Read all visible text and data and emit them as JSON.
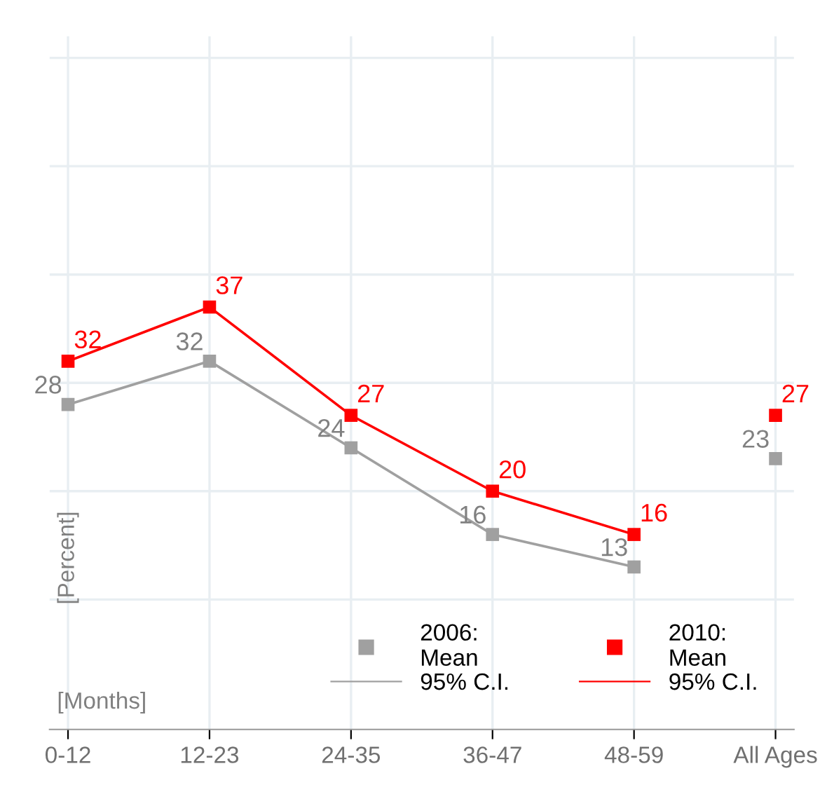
{
  "chart_data": {
    "type": "line",
    "xlabel": "[Months]",
    "ylabel": "[Percent]",
    "categories": [
      "0-12",
      "12-23",
      "24-35",
      "36-47",
      "48-59",
      "All Ages"
    ],
    "series": [
      {
        "name": "2006:\nMean",
        "color": "#a0a0a0",
        "values": [
          28,
          32,
          24,
          16,
          13,
          null
        ]
      },
      {
        "type": "scatter",
        "color": "#a0a0a0",
        "values": [
          null,
          null,
          null,
          null,
          null,
          23
        ]
      },
      {
        "name": "2010:\nMean",
        "color": "#ff0000",
        "values": [
          32,
          37,
          27,
          20,
          16,
          null
        ]
      },
      {
        "type": "scatter",
        "color": "#ff0000",
        "values": [
          null,
          null,
          null,
          null,
          null,
          27
        ]
      }
    ],
    "annotations": [
      "95% C.I.",
      "95% C.I."
    ],
    "ylim": [
      -2,
      62
    ],
    "yticks": [
      {
        "value": 10,
        "label": null
      },
      {
        "value": 20,
        "label": null
      },
      {
        "value": 30,
        "label": null
      },
      {
        "value": 40,
        "label": null
      },
      {
        "value": 50,
        "label": null
      },
      {
        "value": 60,
        "label": null
      }
    ],
    "tick_labels": "x",
    "grid": true,
    "marker": "square",
    "line_style": "solid",
    "data_labels": true,
    "legend": "bottom right"
  }
}
